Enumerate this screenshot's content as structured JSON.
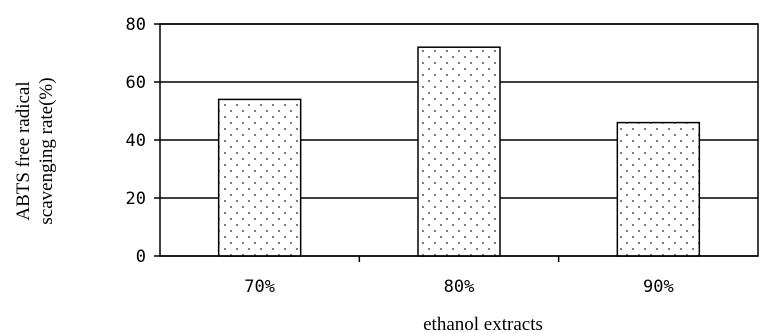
{
  "chart_data": {
    "type": "bar",
    "categories": [
      "70%",
      "80%",
      "90%"
    ],
    "values": [
      54,
      72,
      46
    ],
    "xlabel": "ethanol extracts",
    "ylabel_lines": [
      "ABTS free radical",
      "scavenging rate(%)"
    ],
    "ylim": [
      0,
      80
    ],
    "yticks": [
      "0",
      "20",
      "40",
      "60",
      "80"
    ],
    "grid": true,
    "bar_fill": "dotted"
  }
}
